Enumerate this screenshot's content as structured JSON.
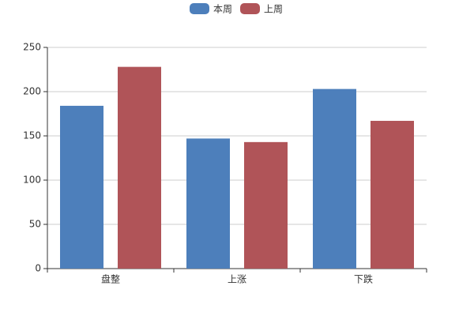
{
  "chart_data": {
    "type": "bar",
    "categories": [
      "盘整",
      "上涨",
      "下跌"
    ],
    "series": [
      {
        "name": "本周",
        "color": "#4d7fbb",
        "values": [
          184,
          147,
          203
        ]
      },
      {
        "name": "上周",
        "color": "#b05458",
        "values": [
          228,
          143,
          167
        ]
      }
    ],
    "ylim": [
      0,
      250
    ],
    "yticks": [
      0,
      50,
      100,
      150,
      200,
      250
    ],
    "grid": true,
    "legend": "top"
  }
}
